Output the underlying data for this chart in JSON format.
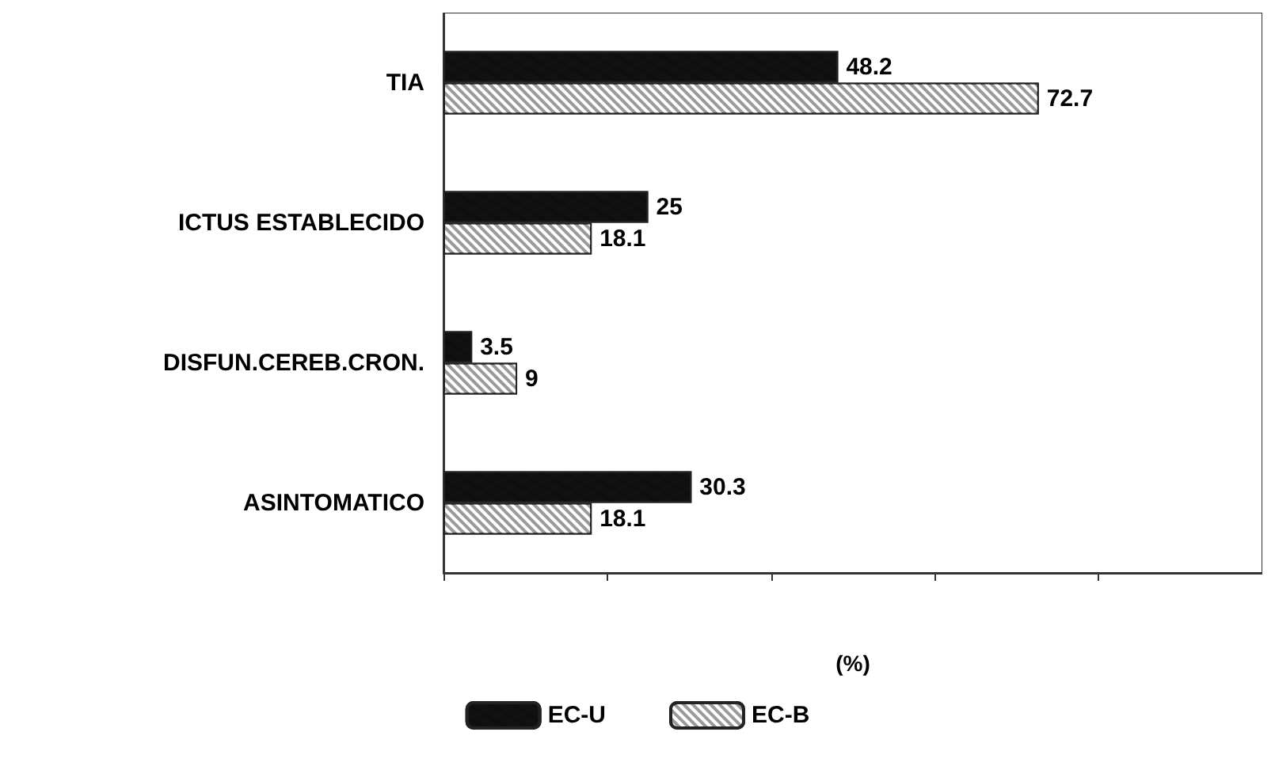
{
  "chart_data": {
    "type": "bar",
    "orientation": "horizontal",
    "xlabel": "(%)",
    "categories": [
      "TIA",
      "ICTUS ESTABLECIDO",
      "DISFUN.CEREB.CRON.",
      "ASINTOMATICO"
    ],
    "series": [
      {
        "name": "EC-U",
        "color": "#111111",
        "values": [
          48.2,
          25,
          3.5,
          30.3
        ]
      },
      {
        "name": "EC-B",
        "color": "#9a9a9a",
        "values": [
          72.7,
          18.1,
          9,
          18.1
        ]
      }
    ],
    "xlim": [
      0,
      100
    ],
    "xticks": [
      {
        "value": 0,
        "label": null
      },
      {
        "value": 20,
        "label": null
      },
      {
        "value": 40,
        "label": null
      },
      {
        "value": 60,
        "label": null
      },
      {
        "value": 80,
        "label": null
      },
      {
        "value": 100,
        "label": null
      }
    ],
    "tick_labels": "y",
    "data_labels": true,
    "legend": "bottom"
  }
}
